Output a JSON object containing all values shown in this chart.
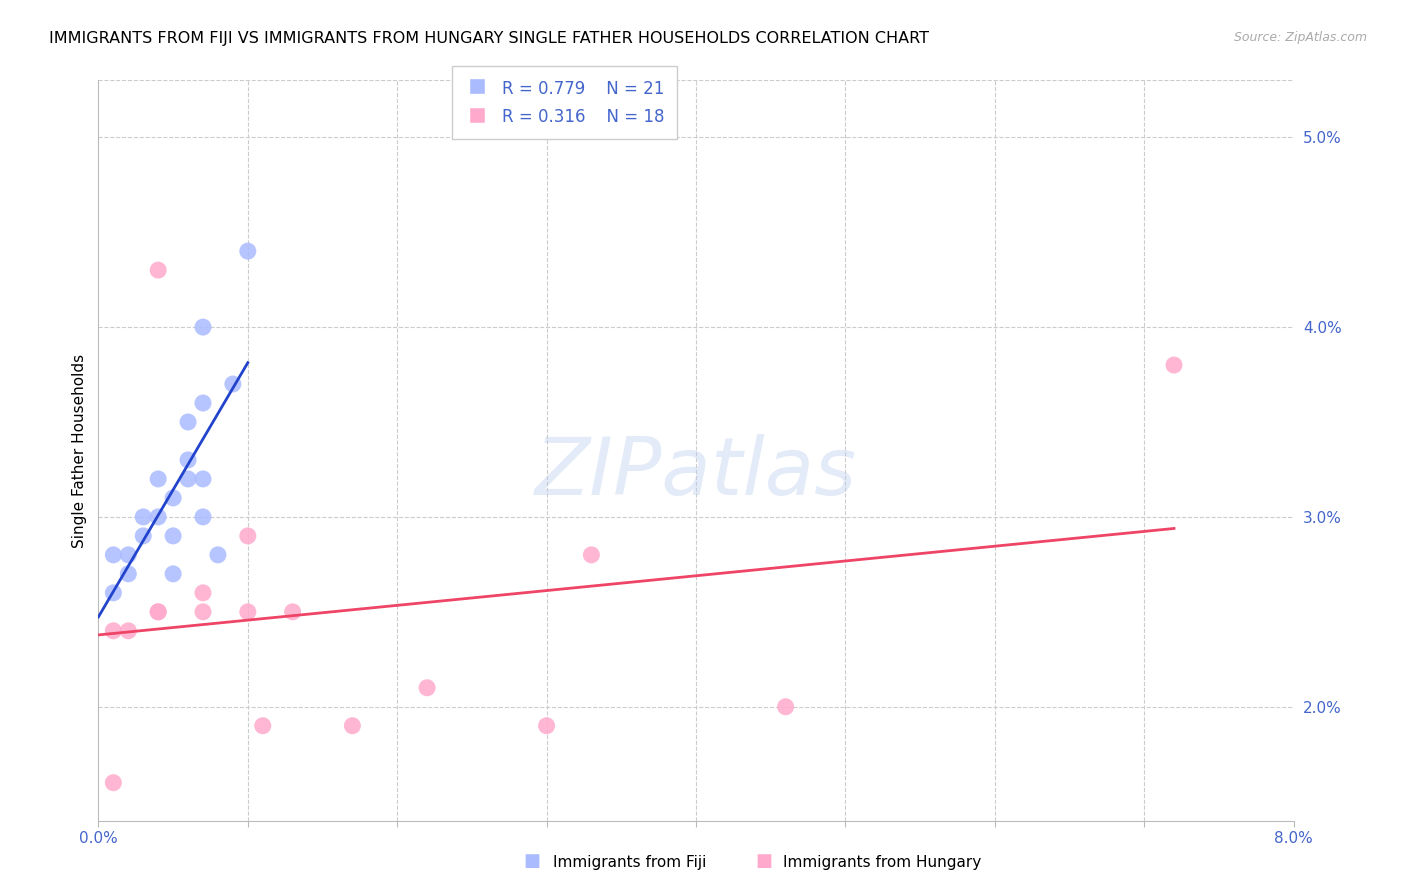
{
  "title": "IMMIGRANTS FROM FIJI VS IMMIGRANTS FROM HUNGARY SINGLE FATHER HOUSEHOLDS CORRELATION CHART",
  "source": "Source: ZipAtlas.com",
  "ylabel": "Single Father Households",
  "right_ytick_labels": [
    "2.0%",
    "3.0%",
    "4.0%",
    "5.0%"
  ],
  "right_ytick_values": [
    0.02,
    0.03,
    0.04,
    0.05
  ],
  "xlim": [
    0.0,
    0.08
  ],
  "ylim": [
    0.014,
    0.053
  ],
  "legend1_r": "0.779",
  "legend1_n": "21",
  "legend2_r": "0.316",
  "legend2_n": "18",
  "legend1_label": "Immigrants from Fiji",
  "legend2_label": "Immigrants from Hungary",
  "blue_color": "#aabbff",
  "pink_color": "#ffaacc",
  "line_blue": "#2244cc",
  "line_pink": "#ee4466",
  "fiji_x": [
    0.001,
    0.001,
    0.002,
    0.002,
    0.003,
    0.003,
    0.004,
    0.004,
    0.005,
    0.005,
    0.005,
    0.006,
    0.006,
    0.006,
    0.007,
    0.007,
    0.007,
    0.007,
    0.008,
    0.009,
    0.01
  ],
  "fiji_y": [
    0.026,
    0.028,
    0.027,
    0.028,
    0.029,
    0.03,
    0.03,
    0.032,
    0.027,
    0.029,
    0.031,
    0.032,
    0.033,
    0.035,
    0.03,
    0.032,
    0.036,
    0.04,
    0.028,
    0.037,
    0.044
  ],
  "hungary_x": [
    0.001,
    0.001,
    0.002,
    0.004,
    0.004,
    0.004,
    0.007,
    0.007,
    0.01,
    0.01,
    0.011,
    0.013,
    0.017,
    0.022,
    0.03,
    0.033,
    0.046,
    0.072
  ],
  "hungary_y": [
    0.024,
    0.016,
    0.024,
    0.025,
    0.025,
    0.043,
    0.025,
    0.026,
    0.025,
    0.029,
    0.019,
    0.025,
    0.019,
    0.021,
    0.019,
    0.028,
    0.02,
    0.038
  ],
  "watermark": "ZIPatlas",
  "title_fontsize": 11.5,
  "axis_label_fontsize": 11,
  "tick_fontsize": 11,
  "legend_fontsize": 12,
  "xtick_values": [
    0.0,
    0.01,
    0.02,
    0.03,
    0.04,
    0.05,
    0.06,
    0.07,
    0.08
  ],
  "xtick_labels": [
    "0.0%",
    "",
    "",
    "",
    "",
    "",
    "",
    "",
    "8.0%"
  ],
  "grid_x_values": [
    0.01,
    0.02,
    0.03,
    0.04,
    0.05,
    0.06,
    0.07
  ],
  "text_color_blue": "#4466cc"
}
